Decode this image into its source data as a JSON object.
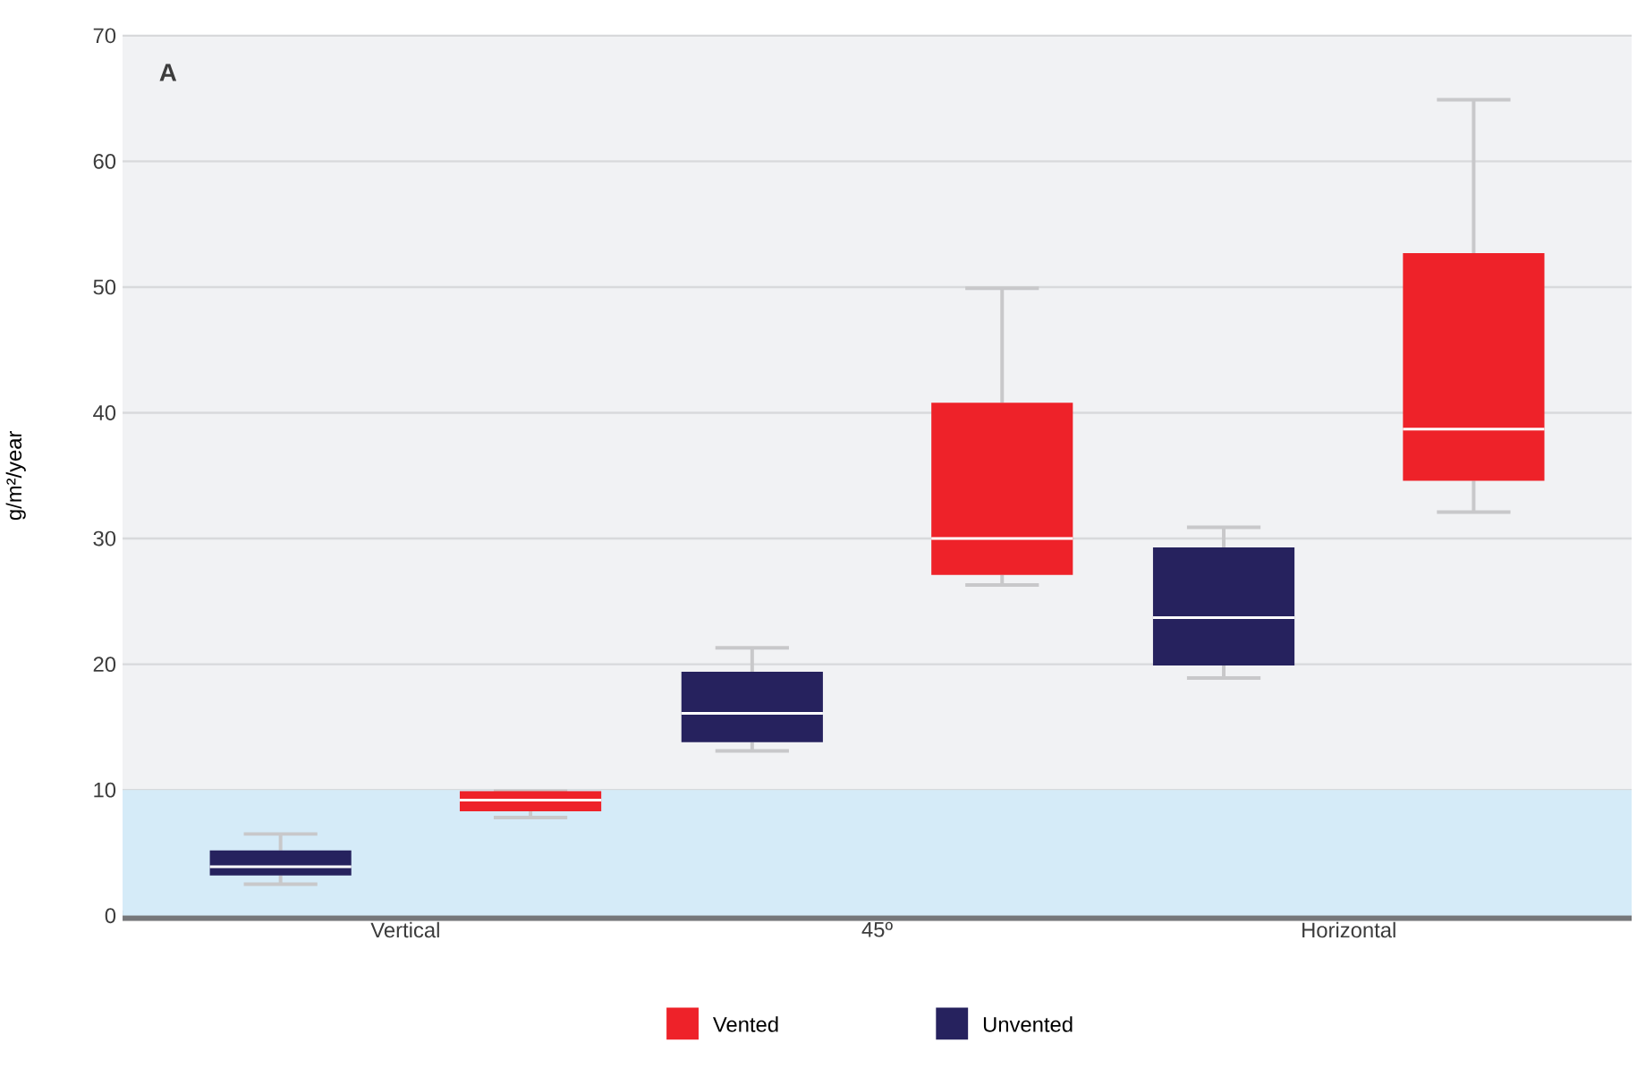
{
  "chart_data": {
    "type": "box",
    "ylabel": "g/m²/year",
    "categories": [
      "Vertical",
      "45º",
      "Horizontal"
    ],
    "series": [
      {
        "name": "Vented",
        "color": "#ee2229",
        "boxes": [
          {
            "low": 7.8,
            "q1": 8.3,
            "median": 9.2,
            "q3": 9.9,
            "high": 9.9
          },
          {
            "low": 26.3,
            "q1": 27.1,
            "median": 30.0,
            "q3": 40.8,
            "high": 49.9
          },
          {
            "low": 32.1,
            "q1": 34.6,
            "median": 38.7,
            "q3": 52.7,
            "high": 64.9
          }
        ]
      },
      {
        "name": "Unvented",
        "color": "#26225e",
        "boxes": [
          {
            "low": 2.5,
            "q1": 3.2,
            "median": 3.9,
            "q3": 5.2,
            "high": 6.5
          },
          {
            "low": 13.1,
            "q1": 13.8,
            "median": 16.1,
            "q3": 19.4,
            "high": 21.3
          },
          {
            "low": 18.9,
            "q1": 19.9,
            "median": 23.7,
            "q3": 29.3,
            "high": 30.9
          }
        ]
      }
    ],
    "ylim": [
      0,
      70
    ],
    "yticks": [
      0,
      10,
      20,
      30,
      40,
      50,
      60,
      70
    ],
    "grid": "y",
    "bands": [
      {
        "axis": "y",
        "from": 0,
        "to": 10,
        "color": "#d5ebf8"
      }
    ],
    "annotations": [
      "**A**"
    ],
    "legend": "bottom"
  }
}
